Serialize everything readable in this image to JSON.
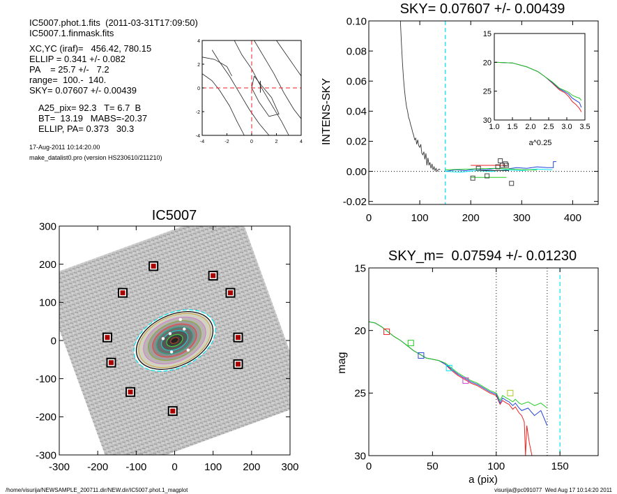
{
  "header": {
    "file_line": "IC5007.phot.1.fits  (2011-03-31T17:09:50)",
    "mask_line": "IC5007.1.finmask.fits",
    "geom_lines": [
      "XC,YC (iraf)=   456.42, 780.15",
      "ELLIP = 0.341 +/- 0.082",
      "PA    = 25.7 +/-   7.2",
      "range=  100.-  140.",
      "SKY= 0.07607 +/- 0.00439"
    ],
    "phot_lines": [
      "A25_pix= 92.3   T= 6.7  B",
      "BT=  13.19   MABS=-20.37",
      "ELLIP, PA= 0.373   30.3"
    ],
    "date_line": "17-Aug-2011 10:14:20.00",
    "prog_line": "make_datalist0.pro (version HS230610/211210)"
  },
  "footer": {
    "left": "/home/visurija/NEWSAMPLE_200711.dir/NEW.dir/IC5007.phot.1_magplot",
    "right": "visurija@pc091077  Wed Aug 17 10:14:20 2011"
  },
  "colors": {
    "cyan": "#00e5ee",
    "red": "#ee2222",
    "green": "#22cc22",
    "blue": "#2244dd",
    "yellow_green": "#aacc22",
    "magenta": "#cc44cc",
    "box_red": "#aa0000",
    "dark": "#333333"
  },
  "chart_data": [
    {
      "id": "contour-panel",
      "type": "contour",
      "title": "",
      "xlim": [
        -4,
        4
      ],
      "ylim": [
        -4,
        4
      ],
      "xticks": [
        "-4",
        "-2",
        "0",
        "2",
        "4"
      ],
      "yticks": [
        "-4",
        "-2",
        "0",
        "2",
        "4"
      ],
      "crosshair": {
        "x": 0,
        "y": 0
      },
      "contours": [
        [
          [
            -4,
            1.2
          ],
          [
            -3.2,
            0.6
          ],
          [
            -2.6,
            -0.2
          ],
          [
            -1.8,
            -1.5
          ],
          [
            -1.2,
            -2.8
          ],
          [
            -0.6,
            -4
          ]
        ],
        [
          [
            -3.2,
            3.2
          ],
          [
            -2.6,
            2.2
          ],
          [
            -1.8,
            1.0
          ],
          [
            -1.0,
            -0.4
          ],
          [
            -0.2,
            -1.8
          ],
          [
            0.6,
            -3.0
          ],
          [
            1.4,
            -4
          ]
        ],
        [
          [
            -1.4,
            4
          ],
          [
            -0.8,
            2.8
          ],
          [
            0.0,
            1.6
          ],
          [
            0.8,
            0.0
          ],
          [
            1.6,
            -1.4
          ],
          [
            2.4,
            -2.8
          ],
          [
            3.0,
            -4
          ]
        ],
        [
          [
            0.2,
            4
          ],
          [
            1.0,
            2.6
          ],
          [
            1.8,
            1.2
          ],
          [
            2.6,
            -0.4
          ],
          [
            3.4,
            -1.8
          ],
          [
            4,
            -2.6
          ]
        ],
        [
          [
            2.0,
            4
          ],
          [
            2.8,
            2.8
          ],
          [
            3.6,
            1.6
          ],
          [
            4,
            1.0
          ]
        ],
        [
          [
            0.2,
            1.0
          ],
          [
            0.8,
            0.2
          ],
          [
            1.6,
            -0.8
          ],
          [
            2.2,
            -2.2
          ],
          [
            1.4,
            -2.4
          ],
          [
            0.6,
            -1.2
          ],
          [
            0.0,
            0.0
          ],
          [
            0.2,
            1.0
          ]
        ],
        [
          [
            -4,
            2.6
          ],
          [
            -3.0,
            2.4
          ],
          [
            -2.0,
            1.8
          ],
          [
            -1.6,
            1.0
          ]
        ]
      ]
    },
    {
      "id": "sky-panel",
      "type": "line",
      "title": "SKY= 0.07607 +/- 0.00439",
      "xlabel": "",
      "ylabel": "INTENS-SKY",
      "xlim": [
        0,
        450
      ],
      "ylim": [
        -0.022,
        0.1
      ],
      "xticks": [
        "0",
        "100",
        "200",
        "300",
        "400"
      ],
      "yticks": [
        "-0.02",
        "0.00",
        "0.02",
        "0.04",
        "0.06",
        "0.08",
        "0.10"
      ],
      "sky_x": 150,
      "profile": {
        "x": [
          62,
          64,
          66,
          68,
          70,
          72,
          74,
          76,
          78,
          80,
          82,
          84,
          86,
          88,
          90,
          92,
          94,
          96,
          98,
          100,
          102,
          104,
          106,
          108,
          110,
          112,
          114,
          116,
          118,
          120,
          122,
          124,
          126,
          128,
          130,
          132,
          134,
          136,
          138,
          140
        ],
        "y": [
          0.1,
          0.085,
          0.072,
          0.062,
          0.054,
          0.048,
          0.043,
          0.04,
          0.036,
          0.034,
          0.031,
          0.029,
          0.026,
          0.024,
          0.021,
          0.022,
          0.018,
          0.021,
          0.017,
          0.016,
          0.018,
          0.012,
          0.011,
          0.013,
          0.008,
          0.012,
          0.004,
          0.009,
          0.004,
          0.006,
          0.002,
          0.005,
          0.001,
          0.003,
          0.0005,
          0.002,
          0.0,
          0.001,
          0.0015,
          0.001
        ]
      },
      "tail_series": [
        {
          "color": "blue",
          "x": [
            150,
            170,
            190,
            210,
            230,
            250,
            270,
            290,
            310,
            330,
            350,
            362,
            362,
            368
          ],
          "y": [
            0.0,
            0.001,
            0.0005,
            0.0015,
            0.001,
            0.002,
            0.0015,
            0.0025,
            0.002,
            0.003,
            0.0025,
            0.0025,
            0.0065,
            0.0065
          ]
        },
        {
          "color": "cyan",
          "x": [
            150,
            180,
            210,
            240,
            270,
            300,
            330,
            360
          ],
          "y": [
            0.0,
            -0.0005,
            0.0005,
            0.0,
            0.001,
            0.0005,
            0.0015,
            0.001
          ]
        },
        {
          "color": "green",
          "x": [
            150,
            200,
            250,
            300,
            330
          ],
          "y": [
            0.001,
            0.0015,
            0.002,
            0.0012,
            0.0008
          ]
        },
        {
          "color": "red",
          "x": [
            200,
            270
          ],
          "y": [
            0.004,
            0.004
          ]
        },
        {
          "color": "green",
          "x": [
            200,
            270
          ],
          "y": [
            -0.004,
            -0.004
          ]
        },
        {
          "color": "dark",
          "x": [
            220,
            275
          ],
          "y": [
            0.0005,
            0.0005
          ]
        }
      ],
      "boxes": {
        "x": [
          204,
          215,
          232,
          253,
          258,
          262,
          268,
          270,
          280
        ],
        "y": [
          -0.0045,
          0.002,
          -0.003,
          0.003,
          0.007,
          0.004,
          0.005,
          0.004,
          -0.008
        ]
      },
      "inset": {
        "xlabel": "a^0.25",
        "xlim": [
          1.0,
          3.5
        ],
        "ylim": [
          30,
          15
        ],
        "xticks": [
          "1.0",
          "1.5",
          "2.0",
          "2.5",
          "3.0",
          "3.5"
        ],
        "yticks": [
          "15",
          "20",
          "25",
          "30"
        ],
        "series": [
          {
            "color": "red",
            "x": [
              1.02,
              1.5,
              1.9,
              2.2,
              2.4,
              2.6,
              2.8,
              2.95,
              3.05,
              3.15,
              3.25,
              3.35,
              3.4
            ],
            "y": [
              20.0,
              20.1,
              20.8,
              21.6,
              22.5,
              23.6,
              24.8,
              25.3,
              25.9,
              26.8,
              27.3,
              28.0,
              28.6
            ]
          },
          {
            "color": "blue",
            "x": [
              1.02,
              1.5,
              1.9,
              2.2,
              2.4,
              2.6,
              2.8,
              2.95,
              3.05,
              3.15,
              3.25,
              3.35,
              3.4
            ],
            "y": [
              20.0,
              20.1,
              20.8,
              21.6,
              22.5,
              23.5,
              24.6,
              25.1,
              25.5,
              26.2,
              26.6,
              27.0,
              27.8
            ]
          },
          {
            "color": "green",
            "x": [
              1.02,
              1.5,
              1.9,
              2.2,
              2.4,
              2.6,
              2.8,
              2.95,
              3.05,
              3.15,
              3.25,
              3.35,
              3.4
            ],
            "y": [
              20.0,
              20.1,
              20.8,
              21.6,
              22.5,
              23.4,
              24.5,
              24.9,
              25.2,
              25.7,
              26.0,
              26.2,
              26.6
            ]
          }
        ]
      }
    },
    {
      "id": "image-panel",
      "type": "image",
      "title": "IC5007",
      "xlim": [
        -300,
        300
      ],
      "ylim": [
        -300,
        300
      ],
      "xticks": [
        "-300",
        "-200",
        "-100",
        "0",
        "100",
        "200",
        "300"
      ],
      "yticks": [
        "-300",
        "-200",
        "-100",
        "0",
        "100",
        "200",
        "300"
      ],
      "galaxy": {
        "center": [
          0,
          0
        ],
        "semi_major": 110,
        "ellipticity": 0.37,
        "pa_deg": 25
      },
      "sky_boxes": {
        "x": [
          -55,
          100,
          -135,
          145,
          -175,
          165,
          -165,
          165,
          -115,
          -5
        ],
        "y": [
          195,
          170,
          125,
          125,
          8,
          8,
          -58,
          -62,
          -135,
          -185
        ]
      }
    },
    {
      "id": "mag-panel",
      "type": "line",
      "title": "SKY_m=  0.07594 +/- 0.01230",
      "xlabel": "a (pix)",
      "ylabel": "mag",
      "xlim": [
        0,
        180
      ],
      "ylim": [
        30,
        15
      ],
      "xticks": [
        "0",
        "50",
        "100",
        "150"
      ],
      "yticks": [
        "15",
        "20",
        "25",
        "30"
      ],
      "vlines_dotted": [
        100,
        140
      ],
      "vline_sky": 150,
      "series": [
        {
          "color": "red",
          "x": [
            0,
            5,
            10,
            15,
            20,
            25,
            30,
            35,
            40,
            45,
            50,
            55,
            60,
            65,
            70,
            75,
            80,
            85,
            90,
            95,
            100,
            103,
            105,
            108,
            110,
            113,
            115,
            118,
            120,
            122,
            123,
            124,
            126,
            128,
            130
          ],
          "y": [
            19.3,
            19.4,
            19.7,
            20.1,
            20.5,
            20.8,
            21.2,
            21.6,
            21.9,
            22.2,
            22.3,
            22.4,
            22.7,
            23.2,
            23.6,
            23.9,
            24.2,
            24.4,
            24.7,
            25.0,
            25.2,
            25.9,
            25.6,
            25.8,
            25.9,
            26.3,
            26.1,
            26.6,
            26.8,
            27.3,
            30,
            27.6,
            29.0,
            30,
            30
          ]
        },
        {
          "color": "blue",
          "x": [
            0,
            5,
            10,
            15,
            20,
            25,
            30,
            35,
            40,
            45,
            50,
            55,
            60,
            65,
            70,
            75,
            80,
            85,
            90,
            95,
            100,
            103,
            105,
            108,
            110,
            113,
            115,
            118,
            120,
            125,
            130,
            135,
            140
          ],
          "y": [
            19.3,
            19.4,
            19.7,
            20.1,
            20.5,
            20.8,
            21.2,
            21.6,
            21.9,
            22.2,
            22.3,
            22.4,
            22.7,
            23.1,
            23.5,
            23.8,
            24.1,
            24.3,
            24.6,
            24.9,
            25.1,
            25.8,
            25.4,
            25.6,
            25.7,
            26.0,
            25.8,
            26.2,
            26.4,
            26.2,
            26.8,
            26.4,
            27.6
          ]
        },
        {
          "color": "green",
          "x": [
            0,
            5,
            10,
            15,
            20,
            25,
            30,
            35,
            40,
            45,
            50,
            55,
            60,
            65,
            70,
            75,
            80,
            85,
            90,
            95,
            100,
            103,
            105,
            108,
            110,
            113,
            115,
            118,
            120,
            125,
            130,
            135,
            140
          ],
          "y": [
            19.3,
            19.4,
            19.7,
            20.1,
            20.5,
            20.8,
            21.2,
            21.6,
            21.9,
            22.2,
            22.3,
            22.4,
            22.6,
            23.0,
            23.4,
            23.7,
            24.0,
            24.2,
            24.5,
            24.8,
            25.0,
            25.6,
            25.2,
            25.4,
            25.5,
            25.7,
            25.5,
            25.8,
            25.9,
            25.7,
            26.0,
            25.8,
            26.2
          ]
        }
      ],
      "markers": [
        {
          "color": "red",
          "x": 14,
          "y": 20.1
        },
        {
          "color": "green",
          "x": 33,
          "y": 21.0
        },
        {
          "color": "blue",
          "x": 41,
          "y": 22.0
        },
        {
          "color": "cyan",
          "x": 63,
          "y": 23.0
        },
        {
          "color": "magenta",
          "x": 76,
          "y": 24.0
        },
        {
          "color": "yellow_green",
          "x": 111,
          "y": 25.0
        }
      ]
    }
  ]
}
